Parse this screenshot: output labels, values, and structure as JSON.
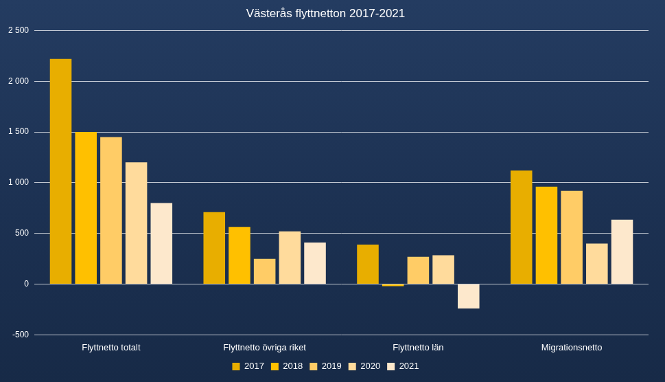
{
  "chart_data": {
    "type": "bar",
    "title": "Västerås flyttnetton 2017-2021",
    "categories": [
      "Flyttnetto totalt",
      "Flyttnetto övriga riket",
      "Flyttnetto län",
      "Migrationsnetto"
    ],
    "series": [
      {
        "name": "2017",
        "color": "#e8ae00",
        "values": [
          2220,
          710,
          390,
          1120
        ]
      },
      {
        "name": "2018",
        "color": "#ffc000",
        "values": [
          1500,
          565,
          -20,
          960
        ]
      },
      {
        "name": "2019",
        "color": "#ffcc66",
        "values": [
          1450,
          250,
          270,
          920
        ]
      },
      {
        "name": "2020",
        "color": "#ffdb9c",
        "values": [
          1200,
          520,
          285,
          400
        ]
      },
      {
        "name": "2021",
        "color": "#fde8cc",
        "values": [
          800,
          410,
          -240,
          635
        ]
      }
    ],
    "ylim": [
      -500,
      2500
    ],
    "yticks": [
      -500,
      0,
      500,
      {
        "value": 1000,
        "label": "1 000"
      },
      {
        "value": 1500,
        "label": "1 500"
      },
      {
        "value": 2000,
        "label": "2 000"
      },
      {
        "value": 2500,
        "label": "2 500"
      }
    ],
    "grid": true,
    "legend": "bottom"
  }
}
